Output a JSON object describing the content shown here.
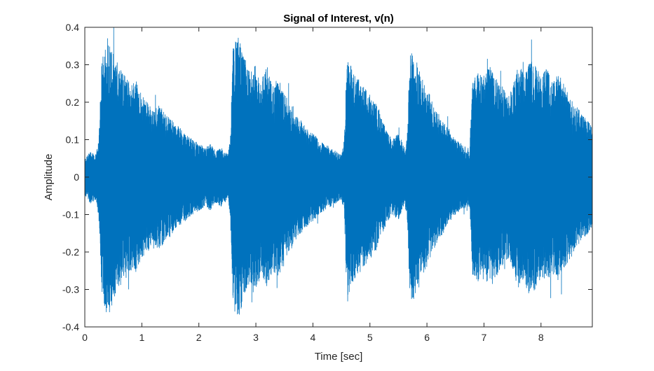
{
  "figure_title": "Signal of Interest, v(n)",
  "chart_data": {
    "type": "line",
    "title": "Signal of Interest, v(n)",
    "xlabel": "Time [sec]",
    "ylabel": "Amplitude",
    "xlim": [
      0,
      8.9
    ],
    "ylim": [
      -0.4,
      0.4
    ],
    "xticks": [
      0,
      1,
      2,
      3,
      4,
      5,
      6,
      7,
      8
    ],
    "xtick_labels": [
      "0",
      "1",
      "2",
      "3",
      "4",
      "5",
      "6",
      "7",
      "8"
    ],
    "yticks": [
      -0.4,
      -0.3,
      -0.2,
      -0.1,
      0,
      0.1,
      0.2,
      0.3,
      0.4
    ],
    "ytick_labels": [
      "-0.4",
      "-0.3",
      "-0.2",
      "-0.1",
      "0",
      "0.1",
      "0.2",
      "0.3",
      "0.4"
    ],
    "grid": false,
    "box": true,
    "series": [
      {
        "color": "#0072BD",
        "envelope_description": "dense audio waveform symmetric about zero",
        "envelope": {
          "t": [
            0.0,
            0.1,
            0.2,
            0.25,
            0.3,
            0.4,
            0.5,
            0.6,
            0.7,
            0.8,
            0.9,
            1.0,
            1.1,
            1.2,
            1.3,
            1.4,
            1.5,
            1.6,
            1.7,
            1.8,
            1.9,
            2.0,
            2.1,
            2.2,
            2.3,
            2.4,
            2.5,
            2.55,
            2.6,
            2.7,
            2.8,
            2.9,
            3.0,
            3.1,
            3.2,
            3.3,
            3.4,
            3.5,
            3.6,
            3.7,
            3.8,
            3.9,
            4.0,
            4.1,
            4.2,
            4.3,
            4.4,
            4.5,
            4.55,
            4.6,
            4.7,
            4.8,
            4.9,
            5.0,
            5.1,
            5.2,
            5.3,
            5.4,
            5.5,
            5.6,
            5.65,
            5.7,
            5.8,
            5.9,
            6.0,
            6.1,
            6.2,
            6.3,
            6.4,
            6.5,
            6.6,
            6.7,
            6.75,
            6.8,
            6.9,
            7.0,
            7.1,
            7.2,
            7.3,
            7.4,
            7.5,
            7.6,
            7.7,
            7.8,
            7.9,
            8.0,
            8.1,
            8.2,
            8.3,
            8.4,
            8.5,
            8.6,
            8.7,
            8.8,
            8.9
          ],
          "amp": [
            0.05,
            0.07,
            0.06,
            0.12,
            0.32,
            0.38,
            0.33,
            0.3,
            0.28,
            0.25,
            0.26,
            0.22,
            0.2,
            0.18,
            0.2,
            0.17,
            0.16,
            0.14,
            0.13,
            0.11,
            0.1,
            0.09,
            0.08,
            0.09,
            0.07,
            0.08,
            0.06,
            0.1,
            0.35,
            0.38,
            0.32,
            0.28,
            0.3,
            0.26,
            0.3,
            0.25,
            0.27,
            0.22,
            0.2,
            0.17,
            0.15,
            0.13,
            0.12,
            0.1,
            0.09,
            0.08,
            0.07,
            0.06,
            0.1,
            0.34,
            0.28,
            0.26,
            0.24,
            0.22,
            0.2,
            0.16,
            0.12,
            0.1,
            0.12,
            0.08,
            0.1,
            0.34,
            0.32,
            0.27,
            0.24,
            0.2,
            0.17,
            0.15,
            0.12,
            0.1,
            0.09,
            0.08,
            0.08,
            0.26,
            0.28,
            0.26,
            0.3,
            0.27,
            0.25,
            0.22,
            0.24,
            0.3,
            0.28,
            0.32,
            0.3,
            0.27,
            0.3,
            0.26,
            0.28,
            0.25,
            0.22,
            0.2,
            0.17,
            0.16,
            0.13
          ]
        }
      }
    ]
  }
}
